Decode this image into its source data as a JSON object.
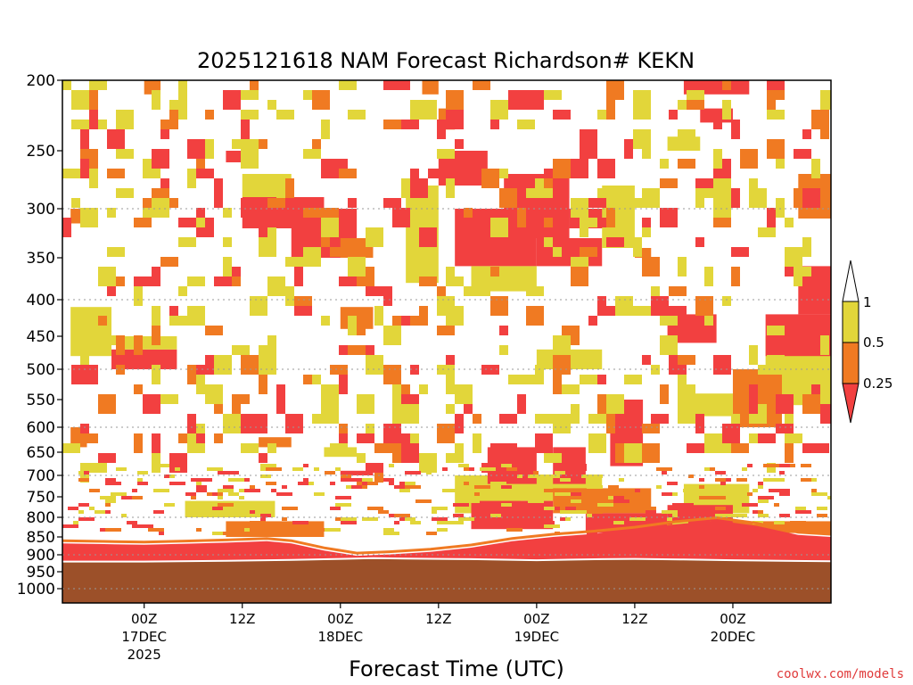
{
  "chart_data": {
    "type": "heatmap",
    "title": "2025121618 NAM Forecast Richardson# KEKN",
    "xlabel": "Forecast Time (UTC)",
    "ylabel": "",
    "credit": "coolwx.com/models",
    "x_unit": "forecast hour",
    "xlim": [
      -10,
      84
    ],
    "ylim": [
      1000,
      200
    ],
    "y_ticks": [
      200,
      250,
      300,
      350,
      400,
      450,
      500,
      550,
      600,
      650,
      700,
      750,
      800,
      850,
      900,
      950,
      1000
    ],
    "y_ticks_text": [
      "200",
      "250",
      "300",
      "350",
      "400",
      "450",
      "500",
      "550",
      "600",
      "650",
      "700",
      "750",
      "800",
      "850",
      "900",
      "950",
      "1000"
    ],
    "grid_levels": [
      300,
      400,
      500,
      600,
      700,
      800,
      900,
      1000
    ],
    "x_ticks": [
      {
        "hour": 0,
        "label": "00Z",
        "date": "17DEC",
        "year": "2025"
      },
      {
        "hour": 12,
        "label": "12Z",
        "date": "",
        "year": ""
      },
      {
        "hour": 24,
        "label": "00Z",
        "date": "18DEC",
        "year": ""
      },
      {
        "hour": 36,
        "label": "12Z",
        "date": "",
        "year": ""
      },
      {
        "hour": 48,
        "label": "00Z",
        "date": "19DEC",
        "year": ""
      },
      {
        "hour": 60,
        "label": "12Z",
        "date": "",
        "year": ""
      },
      {
        "hour": 72,
        "label": "00Z",
        "date": "20DEC",
        "year": ""
      }
    ],
    "colorbar": {
      "levels": [
        "1",
        "0.5",
        "0.25"
      ],
      "colors": {
        "lt_0.25": "#f24040",
        "0.25_0.5": "#f07a22",
        "0.5_1": "#e2d63a",
        "gt_1": "#ffffff"
      }
    },
    "colors": {
      "red": "#f24040",
      "orange": "#f07a22",
      "yellow": "#e2d63a",
      "ground": "#9c5029",
      "frame": "#000000",
      "grid": "#999999"
    },
    "surface_pressure": {
      "hours": [
        -10,
        0,
        10,
        18,
        24,
        28,
        32,
        40,
        48,
        56,
        60,
        66,
        72,
        78,
        84
      ],
      "hPa": [
        920,
        920,
        918,
        915,
        912,
        910,
        911,
        913,
        916,
        913,
        912,
        914,
        916,
        918,
        919
      ]
    },
    "boundary_layer_top": {
      "hours": [
        -10,
        -5,
        0,
        5,
        10,
        15,
        18,
        22,
        26,
        30,
        35,
        40,
        45,
        50,
        55,
        60,
        65,
        70,
        75,
        80,
        84
      ],
      "hPa": [
        868,
        870,
        872,
        869,
        866,
        862,
        868,
        888,
        903,
        899,
        892,
        880,
        862,
        850,
        842,
        832,
        818,
        808,
        822,
        845,
        850
      ]
    },
    "patches": [
      {
        "t0": 5,
        "t1": 16,
        "p0": 760,
        "p1": 800,
        "color": "yellow"
      },
      {
        "t0": 38,
        "t1": 46,
        "p0": 700,
        "p1": 790,
        "color": "yellow"
      },
      {
        "t0": 44,
        "t1": 56,
        "p0": 700,
        "p1": 760,
        "color": "yellow"
      },
      {
        "t0": 50,
        "t1": 62,
        "p0": 730,
        "p1": 790,
        "color": "orange"
      },
      {
        "t0": 66,
        "t1": 74,
        "p0": 720,
        "p1": 790,
        "color": "yellow"
      },
      {
        "t0": 10,
        "t1": 22,
        "p0": 810,
        "p1": 850,
        "color": "orange"
      },
      {
        "t0": 72,
        "t1": 84,
        "p0": 810,
        "p1": 840,
        "color": "orange"
      },
      {
        "t0": 40,
        "t1": 50,
        "p0": 760,
        "p1": 830,
        "color": "red"
      },
      {
        "t0": 54,
        "t1": 64,
        "p0": 790,
        "p1": 840,
        "color": "red"
      },
      {
        "t0": 64,
        "t1": 72,
        "p0": 770,
        "p1": 830,
        "color": "red"
      },
      {
        "t0": 76,
        "t1": 84,
        "p0": 450,
        "p1": 560,
        "color": "yellow"
      },
      {
        "t0": 72,
        "t1": 78,
        "p0": 500,
        "p1": 600,
        "color": "orange"
      },
      {
        "t0": 57,
        "t1": 61,
        "p0": 550,
        "p1": 680,
        "color": "red"
      },
      {
        "t0": 42,
        "t1": 48,
        "p0": 640,
        "p1": 720,
        "color": "red"
      },
      {
        "t0": 50,
        "t1": 54,
        "p0": 640,
        "p1": 720,
        "color": "red"
      },
      {
        "t0": 24,
        "t1": 28,
        "p0": 690,
        "p1": 700,
        "color": "red"
      },
      {
        "t0": -9,
        "t1": -4,
        "p0": 410,
        "p1": 480,
        "color": "yellow"
      },
      {
        "t0": -4,
        "t1": 4,
        "p0": 470,
        "p1": 500,
        "color": "red"
      },
      {
        "t0": -3,
        "t1": 4,
        "p0": 450,
        "p1": 470,
        "color": "yellow"
      },
      {
        "t0": 12,
        "t1": 22,
        "p0": 290,
        "p1": 320,
        "color": "red"
      },
      {
        "t0": 18,
        "t1": 26,
        "p0": 300,
        "p1": 350,
        "color": "red"
      },
      {
        "t0": 24,
        "t1": 28,
        "p0": 330,
        "p1": 350,
        "color": "orange"
      },
      {
        "t0": 36,
        "t1": 42,
        "p0": 250,
        "p1": 280,
        "color": "red"
      },
      {
        "t0": 38,
        "t1": 48,
        "p0": 300,
        "p1": 360,
        "color": "red"
      },
      {
        "t0": 44,
        "t1": 52,
        "p0": 270,
        "p1": 330,
        "color": "red"
      },
      {
        "t0": 52,
        "t1": 58,
        "p0": 300,
        "p1": 320,
        "color": "red"
      },
      {
        "t0": 48,
        "t1": 56,
        "p0": 330,
        "p1": 360,
        "color": "red"
      },
      {
        "t0": 56,
        "t1": 60,
        "p0": 280,
        "p1": 340,
        "color": "yellow"
      },
      {
        "t0": 12,
        "t1": 18,
        "p0": 270,
        "p1": 290,
        "color": "yellow"
      },
      {
        "t0": 32,
        "t1": 36,
        "p0": 280,
        "p1": 380,
        "color": "yellow"
      },
      {
        "t0": 40,
        "t1": 48,
        "p0": 360,
        "p1": 390,
        "color": "yellow"
      },
      {
        "t0": 64,
        "t1": 70,
        "p0": 420,
        "p1": 460,
        "color": "red"
      },
      {
        "t0": 76,
        "t1": 84,
        "p0": 420,
        "p1": 480,
        "color": "red"
      },
      {
        "t0": 80,
        "t1": 84,
        "p0": 360,
        "p1": 420,
        "color": "red"
      },
      {
        "t0": 24,
        "t1": 28,
        "p0": 410,
        "p1": 440,
        "color": "orange"
      },
      {
        "t0": 48,
        "t1": 56,
        "p0": 470,
        "p1": 500,
        "color": "yellow"
      },
      {
        "t0": 10,
        "t1": 12,
        "p0": 250,
        "p1": 260,
        "color": "red"
      },
      {
        "t0": 66,
        "t1": 74,
        "p0": 200,
        "p1": 210,
        "color": "red"
      },
      {
        "t0": 68,
        "t1": 72,
        "p0": 220,
        "p1": 230,
        "color": "red"
      },
      {
        "t0": 64,
        "t1": 68,
        "p0": 240,
        "p1": 250,
        "color": "yellow"
      },
      {
        "t0": 80,
        "t1": 84,
        "p0": 270,
        "p1": 310,
        "color": "orange"
      },
      {
        "t0": -9,
        "t1": -6,
        "p0": 300,
        "p1": 315,
        "color": "orange"
      },
      {
        "t0": -9,
        "t1": -7,
        "p0": 600,
        "p1": 640,
        "color": "orange"
      },
      {
        "t0": 0,
        "t1": 2,
        "p0": 200,
        "p1": 210,
        "color": "orange"
      },
      {
        "t0": 34,
        "t1": 36,
        "p0": 200,
        "p1": 210,
        "color": "orange"
      },
      {
        "t0": 36,
        "t1": 38,
        "p0": 220,
        "p1": 235,
        "color": "orange"
      },
      {
        "t0": 60,
        "t1": 62,
        "p0": 340,
        "p1": 350,
        "color": "orange"
      },
      {
        "t0": 66,
        "t1": 72,
        "p0": 540,
        "p1": 580,
        "color": "yellow"
      },
      {
        "t0": 14,
        "t1": 18,
        "p0": 620,
        "p1": 640,
        "color": "orange"
      },
      {
        "t0": 22,
        "t1": 26,
        "p0": 640,
        "p1": 660,
        "color": "yellow"
      }
    ]
  }
}
